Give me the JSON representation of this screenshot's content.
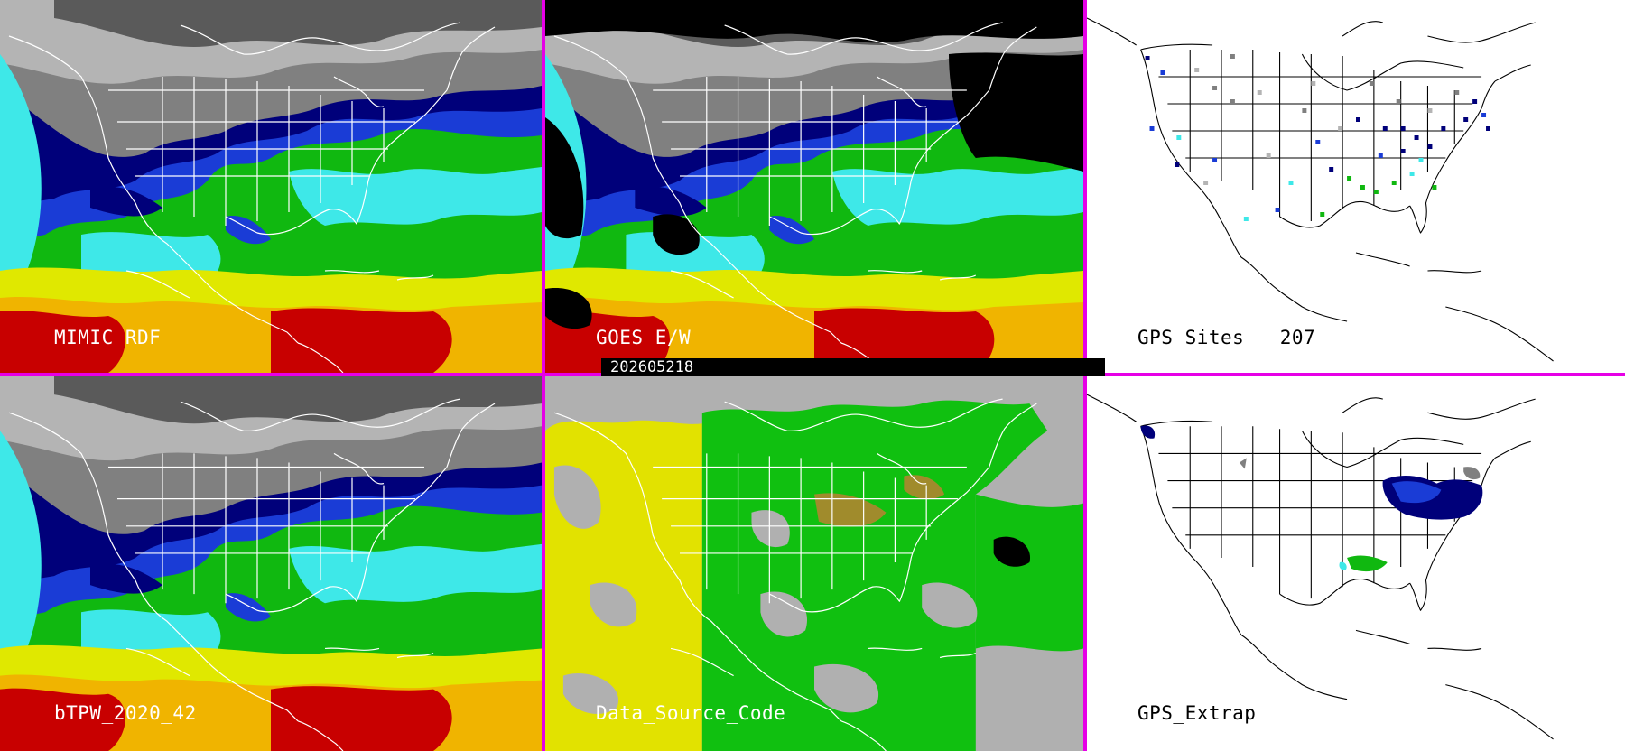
{
  "panels": {
    "mimic_rdf": {
      "label": "MIMIC RDF"
    },
    "goes": {
      "label": "GOES_E/W"
    },
    "gps_sites": {
      "label": "GPS Sites",
      "count": "207"
    },
    "btpw": {
      "label": "bTPW_2020_42"
    },
    "data_source": {
      "label": "Data_Source_Code"
    },
    "gps_extrap": {
      "label": "GPS_Extrap"
    }
  },
  "timestamp": "202605218",
  "colors": {
    "divider": "#e600e6",
    "tpw_scale": [
      "#3c3c3c",
      "#808080",
      "#b4b4b4",
      "#00007a",
      "#1a3cd6",
      "#14b4c8",
      "#3ee8e8",
      "#10b810",
      "#00d000",
      "#e0e800",
      "#f0b400",
      "#c80000"
    ],
    "source_gray": "#b0b0b0",
    "source_yellow": "#e2e200",
    "source_green": "#10c010",
    "source_olive": "#a08b2c"
  }
}
